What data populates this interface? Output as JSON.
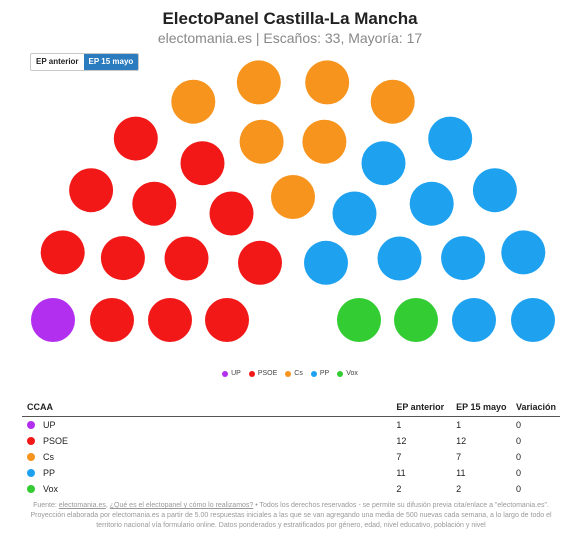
{
  "header": {
    "title": "ElectoPanel Castilla-La Mancha",
    "subtitle": "electomania.es | Escaños: 33, Mayoría: 17"
  },
  "tabs": [
    {
      "label": "EP anterior",
      "active": false
    },
    {
      "label": "EP 15 mayo",
      "active": true
    }
  ],
  "chart_data": {
    "type": "parliament",
    "total_seats": 33,
    "majority": 17,
    "parties": [
      {
        "name": "UP",
        "seats": 1,
        "color": "#b22ff0"
      },
      {
        "name": "PSOE",
        "seats": 12,
        "color": "#f21818"
      },
      {
        "name": "Cs",
        "seats": 7,
        "color": "#f7941d"
      },
      {
        "name": "PP",
        "seats": 11,
        "color": "#1ea2f0"
      },
      {
        "name": "Vox",
        "seats": 2,
        "color": "#33cc33"
      }
    ]
  },
  "table": {
    "headers": {
      "party": "CCAA",
      "prev": "EP anterior",
      "curr": "EP 15 mayo",
      "var": "Variación"
    },
    "rows": [
      {
        "name": "UP",
        "color": "#b22ff0",
        "prev": "1",
        "curr": "1",
        "var": "0"
      },
      {
        "name": "PSOE",
        "color": "#f21818",
        "prev": "12",
        "curr": "12",
        "var": "0"
      },
      {
        "name": "Cs",
        "color": "#f7941d",
        "prev": "7",
        "curr": "7",
        "var": "0"
      },
      {
        "name": "PP",
        "color": "#1ea2f0",
        "prev": "11",
        "curr": "11",
        "var": "0"
      },
      {
        "name": "Vox",
        "color": "#33cc33",
        "prev": "2",
        "curr": "2",
        "var": "0"
      }
    ]
  },
  "footer": {
    "prefix": "Fuente: ",
    "link1": "electomania.es",
    "sep": ", ",
    "link2": "¿Qué es el electopanel y cómo lo realizamos?",
    "text": " • Todos los derechos reservados - se permite su difusión previa cita/enlace a \"electomania.es\". Proyección elaborada por electomania.es a partir de 5.00 respuestas iniciales a las que se van agregando una media de 500 nuevas cada semana, a lo largo de todo el territorio nacional vía formulario online. Datos ponderados y estratificados por género, edad, nivel educativo, población y nivel"
  }
}
